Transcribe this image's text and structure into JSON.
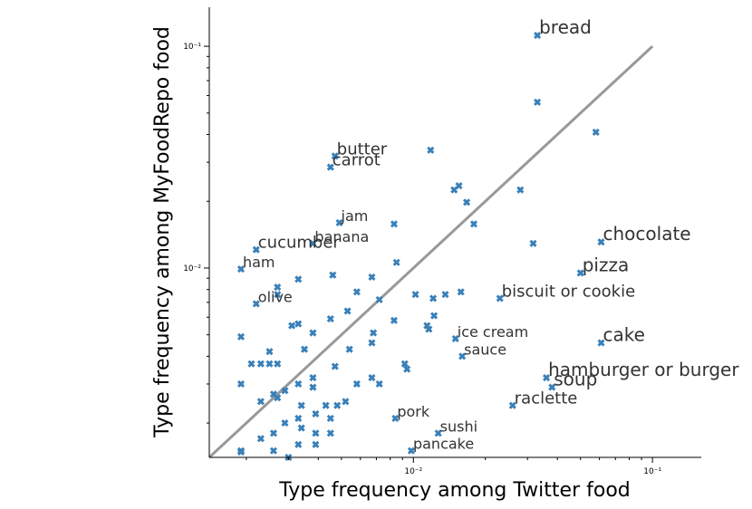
{
  "chart_data": {
    "type": "scatter",
    "xlabel": "Type frequency among Twitter food",
    "ylabel": "Type frequency among MyFoodRepo food",
    "xscale": "log",
    "yscale": "log",
    "xlim": [
      0.0014,
      0.16
    ],
    "ylim": [
      0.0014,
      0.15
    ],
    "xticks": [
      {
        "value": 0.01,
        "label": "10⁻²"
      },
      {
        "value": 0.1,
        "label": "10⁻¹"
      }
    ],
    "yticks": [
      {
        "value": 0.01,
        "label": "10⁻²"
      },
      {
        "value": 0.1,
        "label": "10⁻¹"
      }
    ],
    "reference_line": {
      "x": [
        0.0014,
        0.1
      ],
      "y": [
        0.0014,
        0.1
      ],
      "color": "#999999"
    },
    "marker_color": "#3a80b9",
    "label_color": "#333333",
    "labeled_points": [
      {
        "label": "bread",
        "x": 0.033,
        "y": 0.112,
        "size": "large"
      },
      {
        "label": "butter",
        "x": 0.0047,
        "y": 0.032,
        "size": "medium"
      },
      {
        "label": "carrot",
        "x": 0.0045,
        "y": 0.0285,
        "size": "medium"
      },
      {
        "label": "jam",
        "x": 0.0049,
        "y": 0.016,
        "size": "small"
      },
      {
        "label": "banana",
        "x": 0.0038,
        "y": 0.0129,
        "size": "small"
      },
      {
        "label": "cucumber",
        "x": 0.0022,
        "y": 0.0121,
        "size": "medium"
      },
      {
        "label": "ham",
        "x": 0.0019,
        "y": 0.0099,
        "size": "small"
      },
      {
        "label": "olive",
        "x": 0.0022,
        "y": 0.0069,
        "size": "small"
      },
      {
        "label": "chocolate",
        "x": 0.061,
        "y": 0.0131,
        "size": "large"
      },
      {
        "label": "pizza",
        "x": 0.05,
        "y": 0.0095,
        "size": "large"
      },
      {
        "label": "biscuit or cookie",
        "x": 0.023,
        "y": 0.0073,
        "size": "medium"
      },
      {
        "label": "ice cream",
        "x": 0.015,
        "y": 0.0048,
        "size": "small"
      },
      {
        "label": "sauce",
        "x": 0.016,
        "y": 0.004,
        "size": "small"
      },
      {
        "label": "cake",
        "x": 0.061,
        "y": 0.0046,
        "size": "large"
      },
      {
        "label": "hamburger or burger",
        "x": 0.036,
        "y": 0.0032,
        "size": "large"
      },
      {
        "label": "soup",
        "x": 0.038,
        "y": 0.0029,
        "size": "large"
      },
      {
        "label": "raclette",
        "x": 0.026,
        "y": 0.0024,
        "size": "medium"
      },
      {
        "label": "pork",
        "x": 0.0084,
        "y": 0.0021,
        "size": "small"
      },
      {
        "label": "sushi",
        "x": 0.0127,
        "y": 0.0018,
        "size": "small"
      },
      {
        "label": "pancake",
        "x": 0.0098,
        "y": 0.0015,
        "size": "small"
      }
    ],
    "points": [
      [
        0.033,
        0.056
      ],
      [
        0.058,
        0.041
      ],
      [
        0.0118,
        0.034
      ],
      [
        0.0155,
        0.0235
      ],
      [
        0.0148,
        0.0225
      ],
      [
        0.028,
        0.0225
      ],
      [
        0.0167,
        0.0198
      ],
      [
        0.0179,
        0.0158
      ],
      [
        0.0083,
        0.0158
      ],
      [
        0.0317,
        0.0129
      ],
      [
        0.0085,
        0.0106
      ],
      [
        0.0046,
        0.0093
      ],
      [
        0.0067,
        0.0091
      ],
      [
        0.0058,
        0.0078
      ],
      [
        0.0072,
        0.0072
      ],
      [
        0.0102,
        0.0076
      ],
      [
        0.0121,
        0.0073
      ],
      [
        0.0136,
        0.0076
      ],
      [
        0.0158,
        0.0078
      ],
      [
        0.0033,
        0.0089
      ],
      [
        0.0027,
        0.0082
      ],
      [
        0.0027,
        0.0076
      ],
      [
        0.0068,
        0.0051
      ],
      [
        0.0053,
        0.0064
      ],
      [
        0.0045,
        0.0059
      ],
      [
        0.0033,
        0.0056
      ],
      [
        0.0031,
        0.0055
      ],
      [
        0.0083,
        0.0058
      ],
      [
        0.0122,
        0.0061
      ],
      [
        0.0114,
        0.0055
      ],
      [
        0.0116,
        0.0053
      ],
      [
        0.0038,
        0.0051
      ],
      [
        0.0019,
        0.0049
      ],
      [
        0.0067,
        0.0046
      ],
      [
        0.0054,
        0.0043
      ],
      [
        0.0035,
        0.0043
      ],
      [
        0.0025,
        0.0042
      ],
      [
        0.0092,
        0.0037
      ],
      [
        0.0094,
        0.0035
      ],
      [
        0.0047,
        0.0036
      ],
      [
        0.0021,
        0.0037
      ],
      [
        0.0023,
        0.0037
      ],
      [
        0.0025,
        0.0037
      ],
      [
        0.0027,
        0.0037
      ],
      [
        0.0038,
        0.0032
      ],
      [
        0.0067,
        0.0032
      ],
      [
        0.0072,
        0.003
      ],
      [
        0.0058,
        0.003
      ],
      [
        0.0019,
        0.003
      ],
      [
        0.0033,
        0.003
      ],
      [
        0.0038,
        0.0029
      ],
      [
        0.0029,
        0.0028
      ],
      [
        0.0026,
        0.0027
      ],
      [
        0.0027,
        0.0026
      ],
      [
        0.0023,
        0.0025
      ],
      [
        0.0052,
        0.0025
      ],
      [
        0.0034,
        0.0024
      ],
      [
        0.0043,
        0.0024
      ],
      [
        0.0048,
        0.0024
      ],
      [
        0.0039,
        0.0022
      ],
      [
        0.0045,
        0.0021
      ],
      [
        0.0033,
        0.0021
      ],
      [
        0.0029,
        0.002
      ],
      [
        0.0034,
        0.0019
      ],
      [
        0.0026,
        0.0018
      ],
      [
        0.0039,
        0.0018
      ],
      [
        0.0045,
        0.0018
      ],
      [
        0.0023,
        0.0017
      ],
      [
        0.0039,
        0.0016
      ],
      [
        0.0033,
        0.0016
      ],
      [
        0.0026,
        0.0015
      ],
      [
        0.0019,
        0.0015
      ],
      [
        0.003,
        0.0014
      ],
      [
        0.0019,
        0.00148
      ]
    ]
  }
}
